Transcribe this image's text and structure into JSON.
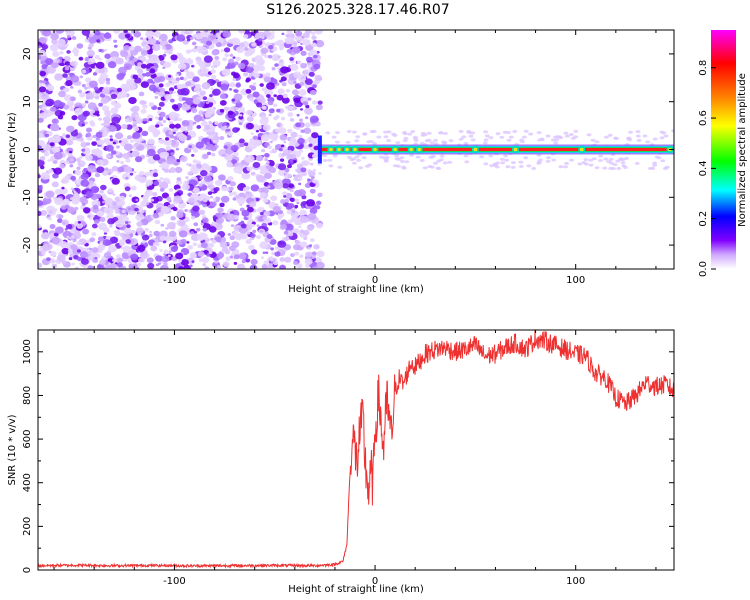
{
  "title": "S126.2025.328.17.46.R07",
  "chart_data": [
    {
      "type": "heatmap",
      "title": "S126.2025.328.17.46.R07",
      "xlabel": "Height of straight line (km)",
      "ylabel": "Frequency (Hz)",
      "xlim": [
        -168,
        149
      ],
      "ylim": [
        -25,
        25
      ],
      "xticks": [
        -100,
        0,
        100
      ],
      "xtick_labels": [
        "-100",
        "0",
        "100"
      ],
      "yticks": [
        -20,
        -10,
        0,
        10,
        20
      ],
      "ytick_labels": [
        "-20",
        "-10",
        "0",
        "10",
        "20"
      ],
      "noise_region_x": [
        -168,
        -27
      ],
      "signal_line": {
        "x_start": -27,
        "x_end": 149,
        "frequency_hz": 0,
        "normalized_amplitude": 0.95
      },
      "colorbar": {
        "label": "Normalized spectral amplitude",
        "ticks": [
          0.0,
          0.2,
          0.4,
          0.6,
          0.8
        ],
        "tick_labels": [
          "0.0",
          "0.2",
          "0.4",
          "0.6",
          "0.8"
        ],
        "colors": [
          "#ffffff",
          "#d0a8ff",
          "#8000ff",
          "#0000ff",
          "#00ffff",
          "#00ff00",
          "#ffff00",
          "#ff8000",
          "#ff0000",
          "#ff00ff"
        ]
      }
    },
    {
      "type": "line",
      "xlabel": "Height of straight line (km)",
      "ylabel": "SNR (10 * v/v)",
      "xlim": [
        -168,
        149
      ],
      "ylim": [
        0,
        1100
      ],
      "xticks": [
        -100,
        0,
        100
      ],
      "xtick_labels": [
        "-100",
        "0",
        "100"
      ],
      "yticks": [
        0,
        200,
        400,
        600,
        800,
        1000
      ],
      "ytick_labels": [
        "0",
        "200",
        "400",
        "600",
        "800",
        "1000"
      ],
      "color": "#ee3030",
      "series": [
        {
          "name": "SNR",
          "x": [
            -168,
            -150,
            -130,
            -110,
            -90,
            -70,
            -50,
            -30,
            -20,
            -16,
            -14,
            -13,
            -12,
            -11,
            -10,
            -9,
            -8,
            -7,
            -6,
            -5,
            -4,
            -3,
            -2,
            -1,
            0,
            2,
            4,
            6,
            8,
            10,
            12,
            14,
            16,
            18,
            20,
            25,
            30,
            35,
            40,
            45,
            50,
            55,
            60,
            65,
            70,
            75,
            80,
            85,
            90,
            95,
            100,
            105,
            110,
            115,
            120,
            125,
            130,
            135,
            140,
            145,
            149
          ],
          "y": [
            20,
            22,
            20,
            21,
            19,
            20,
            21,
            20,
            25,
            40,
            120,
            350,
            520,
            600,
            560,
            480,
            600,
            650,
            700,
            500,
            420,
            350,
            450,
            380,
            650,
            800,
            550,
            780,
            600,
            820,
            880,
            850,
            900,
            950,
            930,
            990,
            1010,
            1020,
            1000,
            1010,
            1030,
            980,
            990,
            1020,
            1040,
            1010,
            1060,
            1050,
            1030,
            1010,
            990,
            980,
            900,
            880,
            790,
            760,
            800,
            860,
            840,
            850,
            820
          ]
        }
      ]
    }
  ]
}
